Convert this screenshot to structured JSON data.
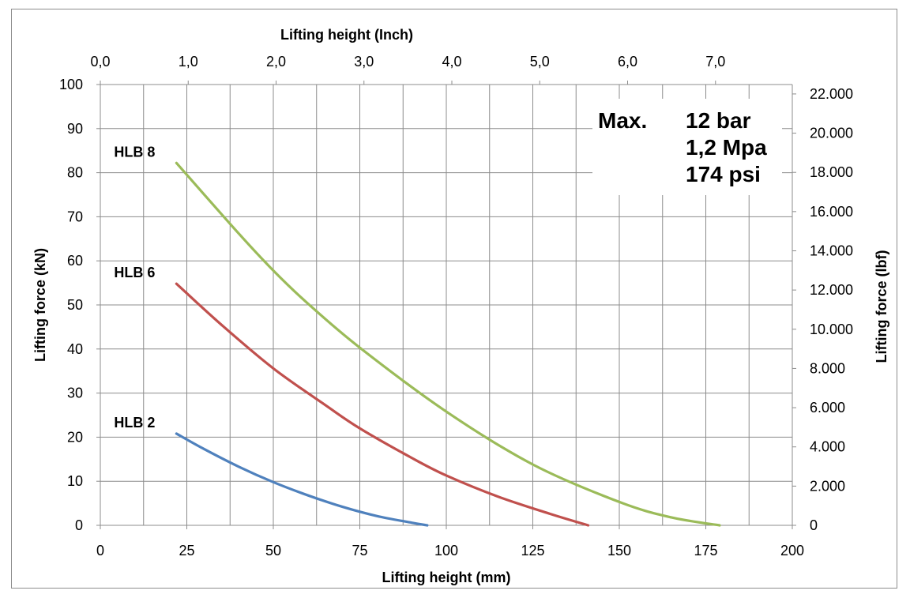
{
  "chart_data": {
    "type": "line",
    "title": "",
    "xlabel": "Lifting height (mm)",
    "x2label": "Lifting height (Inch)",
    "ylabel": "Lifting force (kN)",
    "y2label": "Lifting force (lbf)",
    "xlim": [
      0,
      200
    ],
    "ylim": [
      0,
      100
    ],
    "x2lim": [
      0,
      7.874
    ],
    "y2lim": [
      0,
      22480
    ],
    "x_ticks": [
      "0",
      "25",
      "50",
      "75",
      "100",
      "125",
      "150",
      "175",
      "200"
    ],
    "x_tick_values": [
      0,
      25,
      50,
      75,
      100,
      125,
      150,
      175,
      200
    ],
    "y_ticks": [
      "0",
      "10",
      "20",
      "30",
      "40",
      "50",
      "60",
      "70",
      "80",
      "90",
      "100"
    ],
    "y_tick_values": [
      0,
      10,
      20,
      30,
      40,
      50,
      60,
      70,
      80,
      90,
      100
    ],
    "x2_ticks": [
      "0,0",
      "1,0",
      "2,0",
      "3,0",
      "4,0",
      "5,0",
      "6,0",
      "7,0"
    ],
    "x2_tick_values": [
      0,
      1,
      2,
      3,
      4,
      5,
      6,
      7
    ],
    "y2_ticks": [
      "0",
      "2.000",
      "4.000",
      "6.000",
      "8.000",
      "10.000",
      "12.000",
      "14.000",
      "16.000",
      "18.000",
      "20.000",
      "22.000"
    ],
    "y2_tick_values": [
      0,
      2000,
      4000,
      6000,
      8000,
      10000,
      12000,
      14000,
      16000,
      18000,
      20000,
      22000
    ],
    "grid": true,
    "series": [
      {
        "name": "HLB 2",
        "color": "#4f81bd",
        "x": [
          22,
          30,
          40,
          50,
          60,
          70,
          80,
          90,
          94.5
        ],
        "y": [
          20.8,
          17.3,
          13.3,
          9.8,
          6.8,
          4.2,
          2.1,
          0.6,
          0
        ]
      },
      {
        "name": "HLB 6",
        "color": "#c0504d",
        "x": [
          22,
          35,
          50,
          65,
          75,
          90,
          100,
          115,
          130,
          141
        ],
        "y": [
          54.8,
          45.5,
          35.6,
          27.3,
          22.0,
          15.3,
          11.3,
          6.5,
          2.6,
          0
        ]
      },
      {
        "name": "HLB 8",
        "color": "#9bbb59",
        "x": [
          22,
          40,
          50,
          60,
          75,
          100,
          125,
          150,
          165,
          179
        ],
        "y": [
          82.2,
          66.2,
          57.8,
          50.3,
          40.3,
          25.8,
          13.8,
          5.3,
          1.8,
          0
        ]
      }
    ],
    "annotation": {
      "lines": [
        {
          "label": "Max.",
          "value": "12 bar"
        },
        {
          "label": "",
          "value": "1,2 Mpa"
        },
        {
          "label": "",
          "value": "174 psi"
        }
      ]
    }
  }
}
